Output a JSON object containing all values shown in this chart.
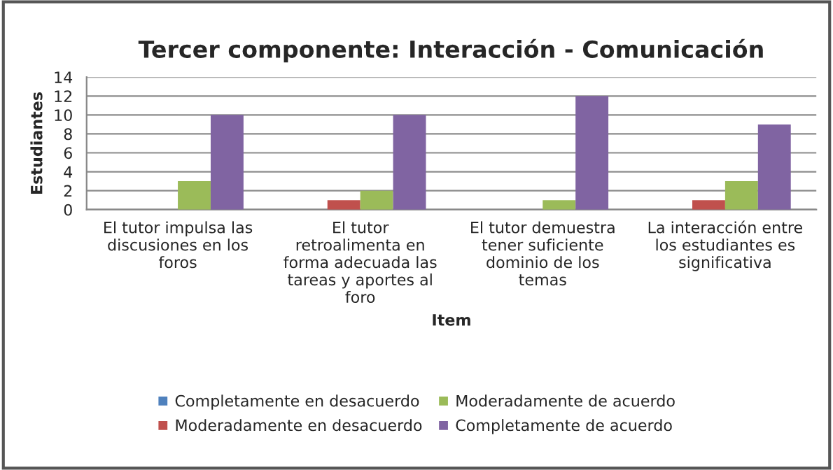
{
  "chart_data": {
    "type": "bar",
    "title": "Tercer componente: Interacción - Comunicación",
    "xlabel": "Item",
    "ylabel": "Estudiantes",
    "categories": [
      "El tutor impulsa las\ndiscusiones en los\nforos",
      "El tutor\nretroalimenta en\nforma adecuada las\ntareas y aportes al\nforo",
      "El tutor demuestra\ntener suficiente\ndominio de los\ntemas",
      "La interacción entre\nlos estudiantes es\nsignificativa"
    ],
    "series": [
      {
        "name": "Completamente en desacuerdo",
        "color": "#4f81bd",
        "values": [
          0,
          0,
          0,
          0
        ]
      },
      {
        "name": "Moderadamente en desacuerdo",
        "color": "#c0504d",
        "values": [
          0,
          1,
          0,
          1
        ]
      },
      {
        "name": "Moderadamente de acuerdo",
        "color": "#9bbb59",
        "values": [
          3,
          2,
          1,
          3
        ]
      },
      {
        "name": "Completamente de acuerdo",
        "color": "#8064a2",
        "values": [
          10,
          10,
          12,
          9
        ]
      }
    ],
    "ylim": [
      0,
      14
    ],
    "yticks": [
      0,
      2,
      4,
      6,
      8,
      10,
      12,
      14
    ],
    "grid": "y",
    "legend": "bottom"
  }
}
